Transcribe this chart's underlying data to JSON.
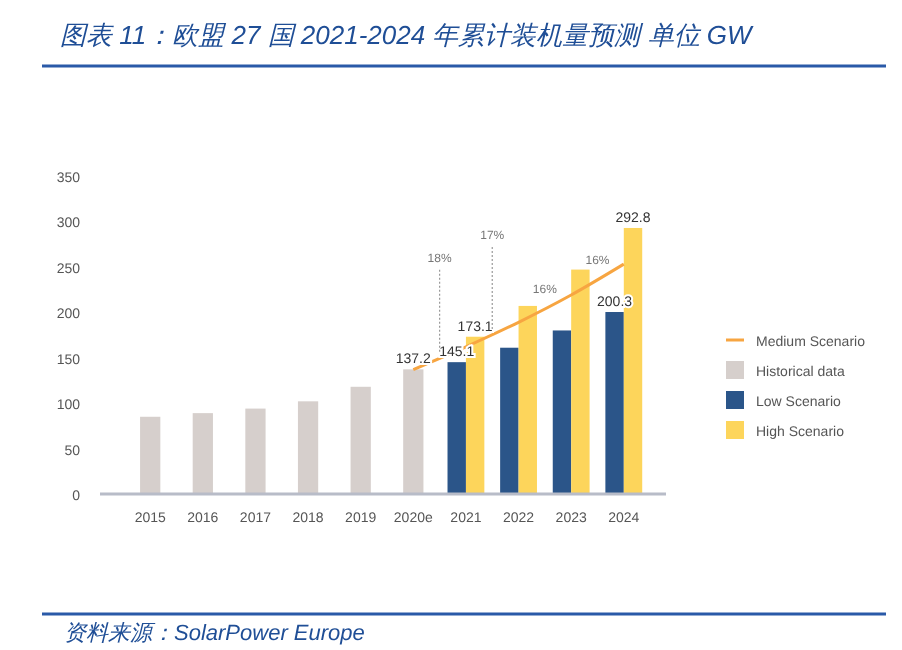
{
  "chart_data": {
    "type": "bar",
    "title": "图表 11：欧盟 27 国 2021-2024 年累计装机量预测 单位 GW",
    "categories": [
      "2015",
      "2016",
      "2017",
      "2018",
      "2019",
      "2020e",
      "2021",
      "2022",
      "2023",
      "2024"
    ],
    "series": [
      {
        "name": "Historical data",
        "color": "#d6cfcc",
        "values": [
          85,
          89,
          94,
          102,
          118,
          137.2,
          null,
          null,
          null,
          null
        ],
        "value_labels": [
          null,
          null,
          null,
          null,
          null,
          "137.2",
          null,
          null,
          null,
          null
        ]
      },
      {
        "name": "Low Scenario",
        "color": "#2b5589",
        "values": [
          null,
          null,
          null,
          null,
          null,
          null,
          145.1,
          161,
          180,
          200.3
        ],
        "value_labels": [
          null,
          null,
          null,
          null,
          null,
          null,
          "145.1",
          null,
          null,
          "200.3"
        ]
      },
      {
        "name": "High Scenario",
        "color": "#fdd55b",
        "values": [
          null,
          null,
          null,
          null,
          null,
          null,
          173.1,
          207,
          247,
          292.8
        ],
        "value_labels": [
          null,
          null,
          null,
          null,
          null,
          null,
          "173.1",
          null,
          null,
          "292.8"
        ]
      },
      {
        "name": "Medium Scenario",
        "type": "line",
        "color": "#f7a541",
        "values": [
          null,
          null,
          null,
          null,
          null,
          137,
          162,
          189,
          219,
          253
        ]
      }
    ],
    "ylim": [
      0,
      350
    ],
    "yticks": [
      0,
      50,
      100,
      150,
      200,
      250,
      300,
      350
    ],
    "legend": "right",
    "annotations": [
      {
        "text": "18%",
        "y": 150
      },
      {
        "text": "17%",
        "y": 175
      },
      "16%",
      "16%",
      "资料来源：SolarPower Europe"
    ]
  }
}
